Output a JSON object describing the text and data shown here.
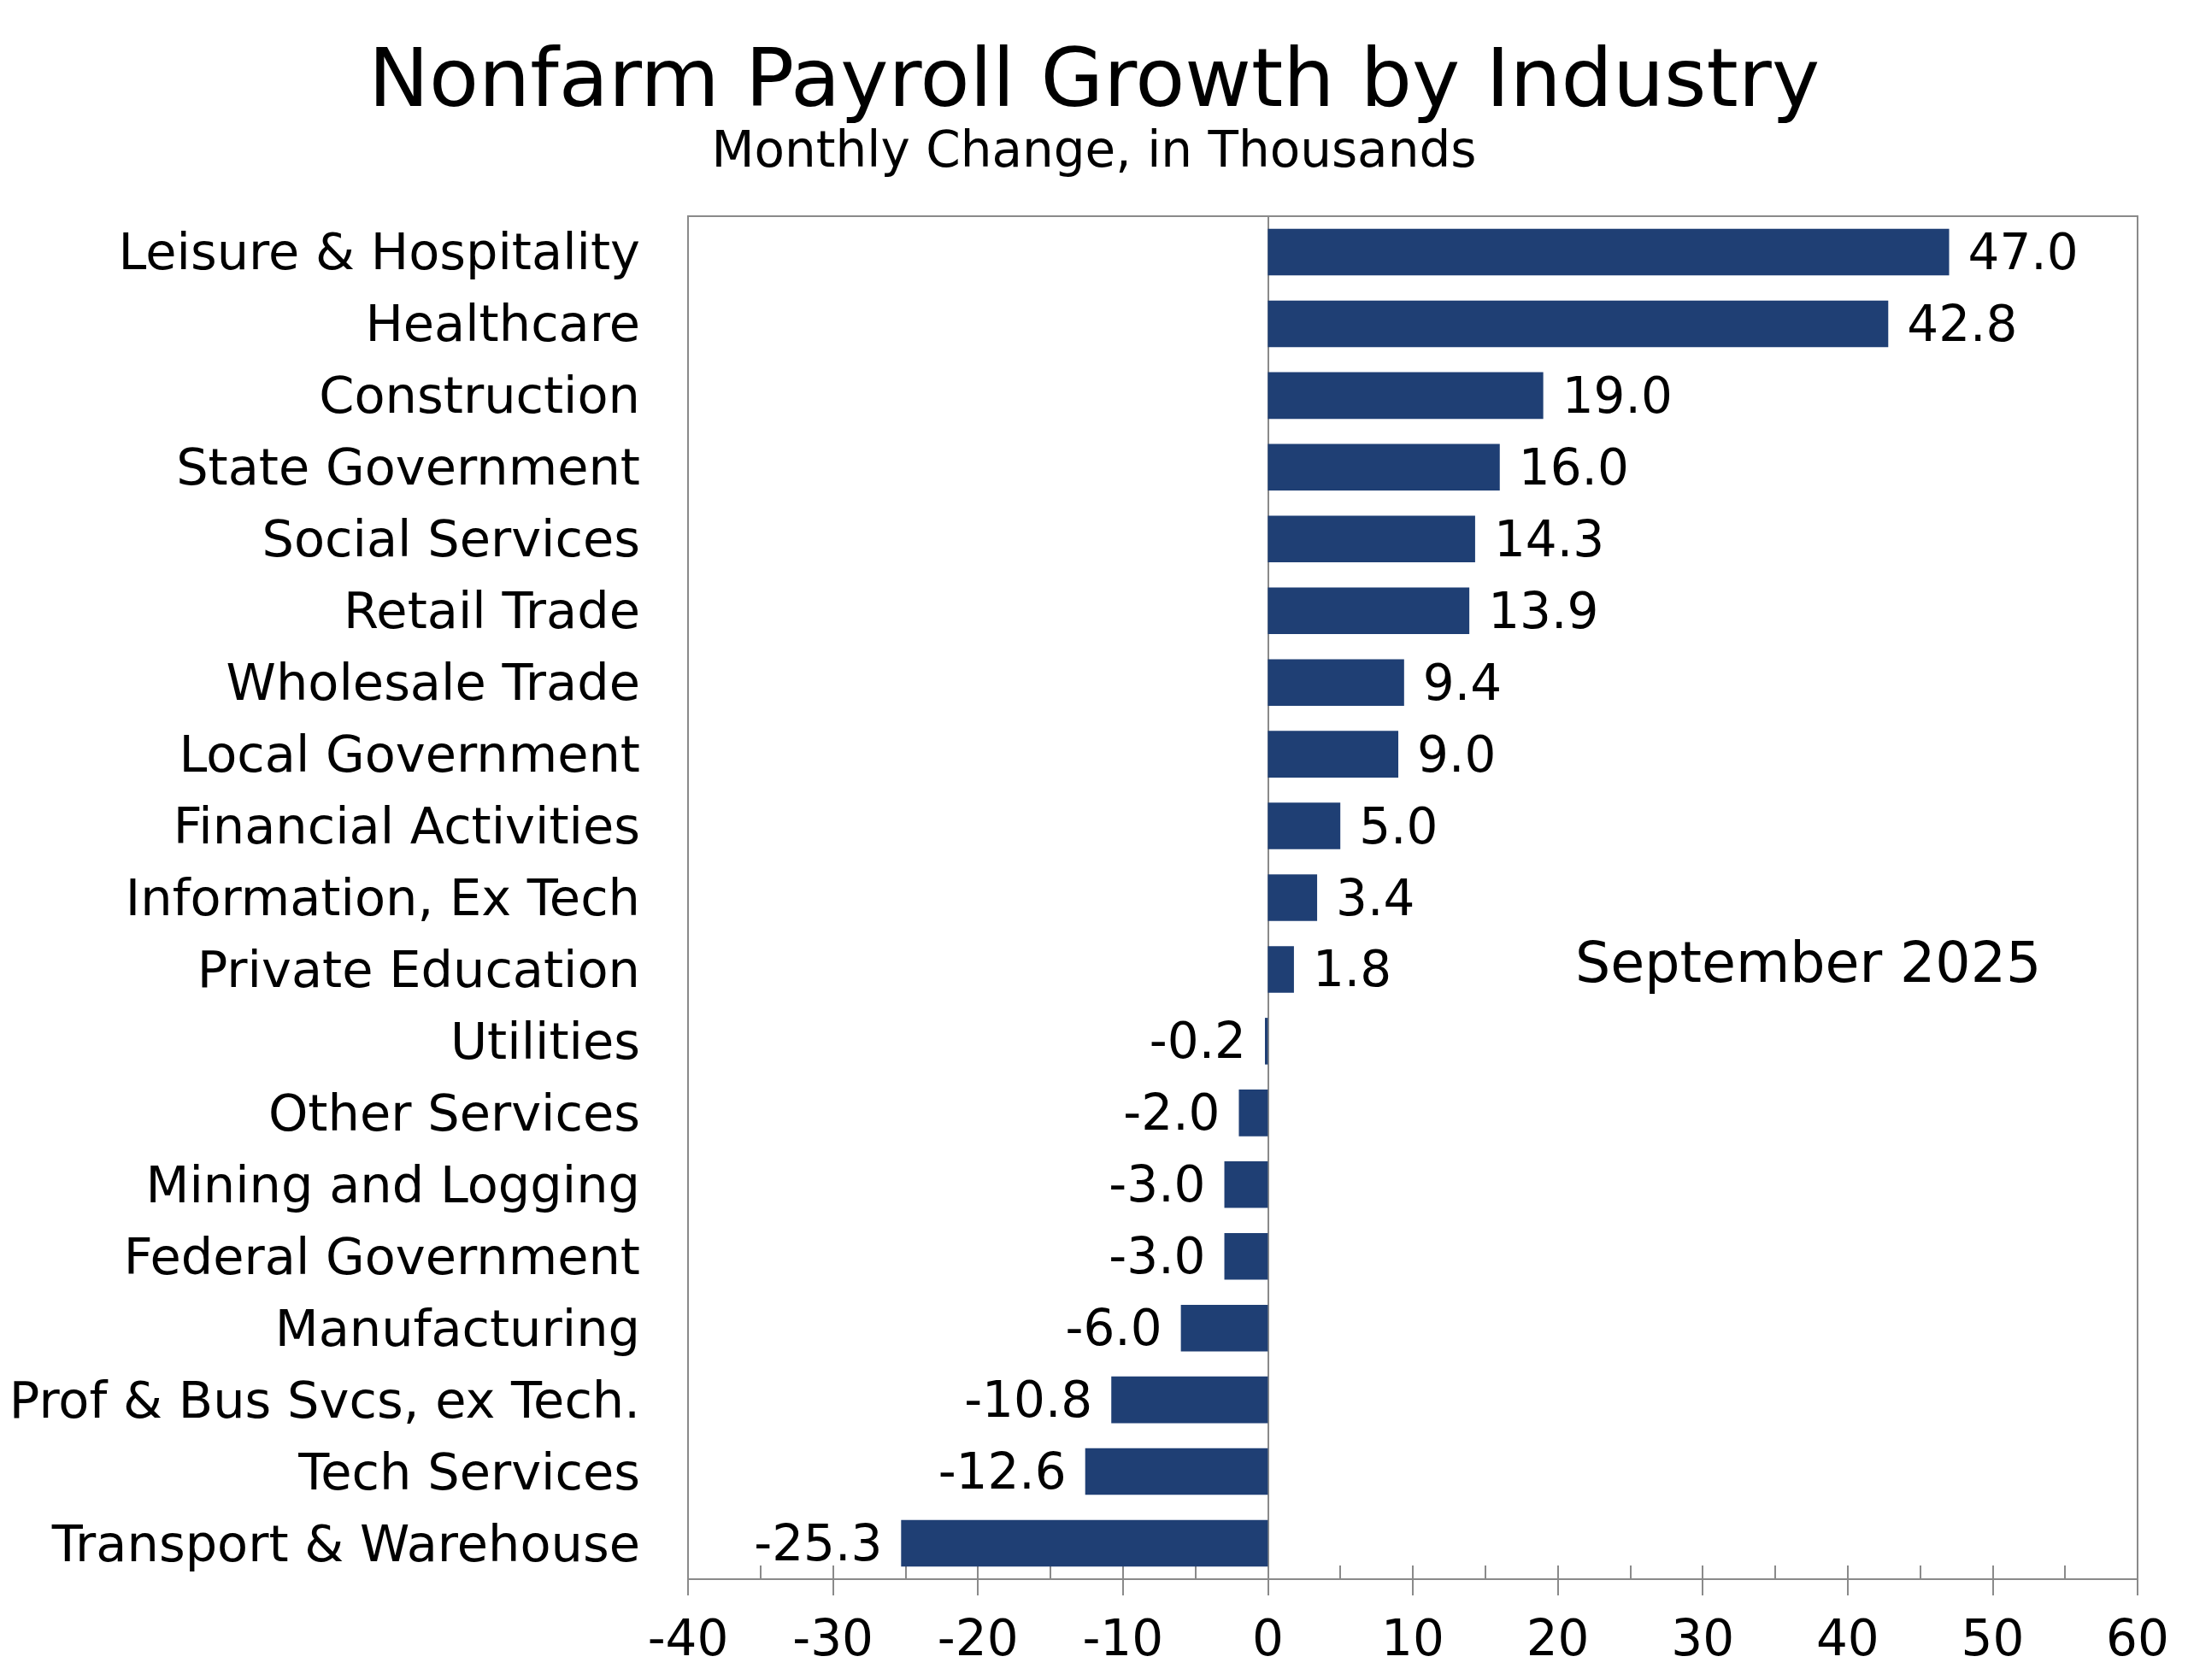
{
  "chart_data": {
    "type": "bar",
    "orientation": "horizontal",
    "title": "Nonfarm Payroll Growth by Industry",
    "subtitle": "Monthly Change, in Thousands",
    "annotations": [
      "September 2025"
    ],
    "categories": [
      "Leisure & Hospitality",
      "Healthcare",
      "Construction",
      "State Government",
      "Social Services",
      "Retail Trade",
      "Wholesale Trade",
      "Local Government",
      "Financial Activities",
      "Information, Ex Tech",
      "Private Education",
      "Utilities",
      "Other Services",
      "Mining and Logging",
      "Federal Government",
      "Manufacturing",
      "Prof & Bus Svcs, ex Tech.",
      "Tech Services",
      "Transport & Warehouse"
    ],
    "values": [
      47.0,
      42.8,
      19.0,
      16.0,
      14.3,
      13.9,
      9.4,
      9.0,
      5.0,
      3.4,
      1.8,
      -0.2,
      -2.0,
      -3.0,
      -3.0,
      -6.0,
      -10.8,
      -12.6,
      -25.3
    ],
    "value_labels": [
      "47.0",
      "42.8",
      "19.0",
      "16.0",
      "14.3",
      "13.9",
      "9.4",
      "9.0",
      "5.0",
      "3.4",
      "1.8",
      "-0.2",
      "-2.0",
      "-3.0",
      "-3.0",
      "-6.0",
      "-10.8",
      "-12.6",
      "-25.3"
    ],
    "color": "#1f3f74",
    "xlim": [
      -40,
      60
    ],
    "xticks": [
      -40,
      {
        "value": -35,
        "label": null
      },
      -30,
      {
        "value": -25,
        "label": null
      },
      -20,
      {
        "value": -15,
        "label": null
      },
      -10,
      {
        "value": -5,
        "label": null
      },
      0,
      {
        "value": 5,
        "label": null
      },
      10,
      {
        "value": 15,
        "label": null
      },
      20,
      {
        "value": 25,
        "label": null
      },
      30,
      {
        "value": 35,
        "label": null
      },
      40,
      {
        "value": 45,
        "label": null
      },
      50,
      {
        "value": 55,
        "label": null
      },
      60
    ]
  }
}
